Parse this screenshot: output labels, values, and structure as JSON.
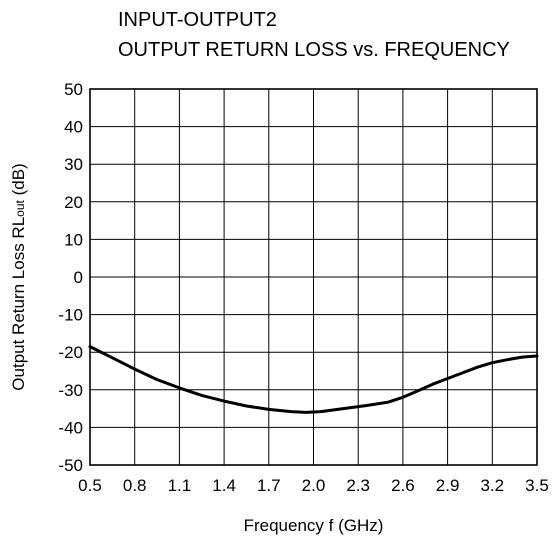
{
  "chart_data": {
    "type": "line",
    "title": [
      "INPUT-OUTPUT2",
      "OUTPUT RETURN LOSS vs. FREQUENCY"
    ],
    "xlabel": "Frequency  f (GHz)",
    "ylabel": {
      "main": "Output Return Loss  RL",
      "sub": "out",
      "unit": " (dB)"
    },
    "xlim": [
      0.5,
      3.5
    ],
    "ylim": [
      -50,
      50
    ],
    "xticks": [
      "0.5",
      "0.8",
      "1.1",
      "1.4",
      "1.7",
      "2.0",
      "2.3",
      "2.6",
      "2.9",
      "3.2",
      "3.5"
    ],
    "yticks": [
      "50",
      "40",
      "30",
      "20",
      "10",
      "0",
      "-10",
      "-20",
      "-30",
      "-40",
      "-50"
    ],
    "grid": true,
    "series": [
      {
        "color": "#000000",
        "x": [
          0.5,
          0.65,
          0.8,
          0.95,
          1.1,
          1.25,
          1.4,
          1.55,
          1.7,
          1.85,
          1.95,
          2.05,
          2.2,
          2.35,
          2.5,
          2.6,
          2.7,
          2.8,
          2.9,
          3.0,
          3.1,
          3.2,
          3.3,
          3.4,
          3.5
        ],
        "y": [
          -18.5,
          -21.5,
          -24.5,
          -27.3,
          -29.5,
          -31.5,
          -33.0,
          -34.3,
          -35.2,
          -35.8,
          -36.0,
          -35.8,
          -35.0,
          -34.2,
          -33.3,
          -32.0,
          -30.3,
          -28.5,
          -27.0,
          -25.5,
          -24.0,
          -22.8,
          -22.0,
          -21.3,
          -21.0
        ]
      }
    ]
  }
}
